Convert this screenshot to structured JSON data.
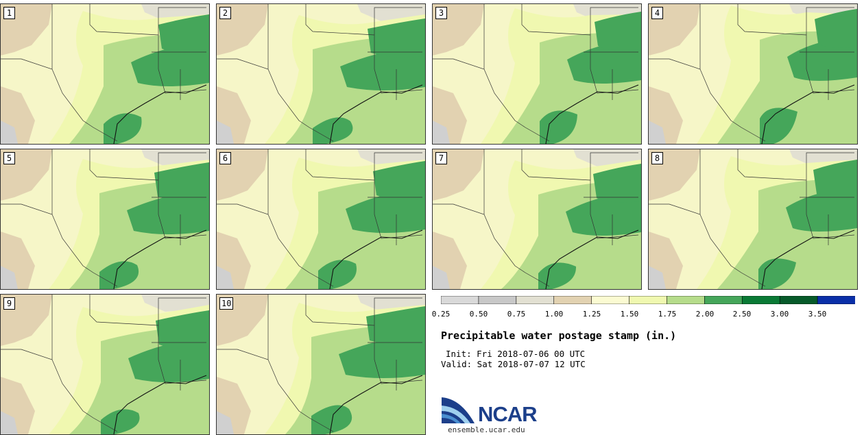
{
  "title": "Precipitable water postage stamp (in.)",
  "init_line": "Init: Fri 2018-07-06 00 UTC",
  "valid_line": "Valid: Sat 2018-07-07 12 UTC",
  "logo_text": "NCAR",
  "website": "ensemble.ucar.edu",
  "members": [
    "1",
    "2",
    "3",
    "4",
    "5",
    "6",
    "7",
    "8",
    "9",
    "10"
  ],
  "colorbar": {
    "ticks": [
      "0.25",
      "0.50",
      "0.75",
      "1.00",
      "1.25",
      "1.50",
      "1.75",
      "2.00",
      "2.50",
      "3.00",
      "3.50"
    ],
    "colors": [
      "#d9d9d9",
      "#c8c8c8",
      "#e2e0d2",
      "#e2d2b1",
      "#fbfbd2",
      "#f0f8b0",
      "#b6dc8b",
      "#45a65a",
      "#0a7a35",
      "#075a2a",
      "#0a2fa8"
    ]
  }
}
